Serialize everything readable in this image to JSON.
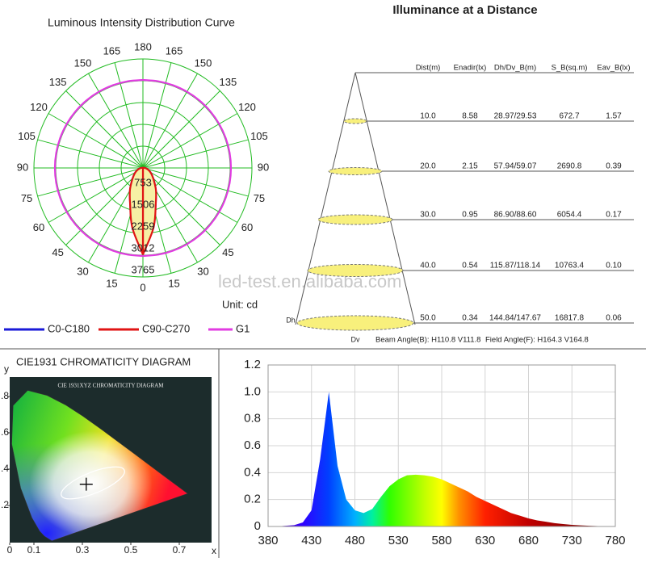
{
  "chart_data": [
    {
      "type": "polar",
      "title": "Luminous Intensity Distribution Curve",
      "angle_ticks": [
        0,
        15,
        30,
        45,
        60,
        75,
        90,
        105,
        120,
        135,
        150,
        165,
        180
      ],
      "rlim": [
        0,
        3765
      ],
      "rticks": [
        753,
        1506,
        2259,
        3012,
        3765
      ],
      "unit_label": "Unit: cd",
      "watermark": "led-test.en.alibaba.com",
      "angles": [
        0,
        10,
        20,
        30,
        40,
        50,
        60,
        70,
        80,
        90,
        100,
        110,
        120,
        130,
        140,
        150,
        160,
        170,
        180
      ],
      "series": [
        {
          "name": "C0-C180",
          "color": "#1a1ad8",
          "values": [
            2960,
            2080,
            1290,
            890,
            600,
            420,
            300,
            200,
            120,
            60,
            30,
            10,
            0,
            0,
            0,
            0,
            0,
            0,
            0
          ]
        },
        {
          "name": "C90-C270",
          "color": "#e01414",
          "fill": "#f6f0a4",
          "values": [
            2990,
            2100,
            1300,
            900,
            600,
            420,
            300,
            200,
            120,
            60,
            30,
            10,
            0,
            0,
            0,
            0,
            0,
            0,
            0
          ]
        },
        {
          "name": "G1",
          "color": "#e23be2",
          "values": [
            3040,
            3040,
            3040,
            3040,
            3040,
            3040,
            3040,
            3040,
            3040,
            3040,
            3040,
            3040,
            3040,
            3040,
            3040,
            3040,
            3040,
            3040,
            3040
          ]
        }
      ]
    },
    {
      "type": "scatter",
      "title": "CIE1931 CHROMATICITY DIAGRAM",
      "inner_title": "CIE 1931XYZ CHROMATICITY DIAGRAM",
      "xlabel": "x",
      "ylabel": "y",
      "xlim": [
        0,
        0.8
      ],
      "ylim": [
        0,
        0.9
      ],
      "xticks": [
        0,
        0.1,
        0.3,
        0.5,
        0.7
      ],
      "yticks": [
        {
          "value": 0.2,
          "label": ".2"
        },
        {
          "value": 0.4,
          "label": ".4"
        },
        {
          "value": 0.6,
          "label": ".6"
        },
        {
          "value": 0.8,
          "label": ".8"
        }
      ],
      "x": [
        0.316
      ],
      "values": [
        0.317
      ]
    },
    {
      "type": "area",
      "xlim": [
        380,
        780
      ],
      "ylim": [
        0,
        1.2
      ],
      "xticks": [
        380,
        430,
        480,
        530,
        580,
        630,
        680,
        730,
        780
      ],
      "yticks": [
        0,
        0.2,
        0.4,
        0.6,
        0.8,
        {
          "value": 1,
          "label": "1.0"
        },
        1.2
      ],
      "grid": true,
      "x": [
        380,
        390,
        400,
        410,
        420,
        430,
        440,
        450,
        460,
        470,
        480,
        490,
        500,
        510,
        520,
        530,
        540,
        550,
        560,
        570,
        580,
        590,
        600,
        610,
        620,
        630,
        640,
        650,
        660,
        670,
        680,
        690,
        700,
        710,
        720,
        730,
        740,
        750,
        760,
        770,
        780
      ],
      "values": [
        0,
        0,
        0.005,
        0.01,
        0.03,
        0.12,
        0.5,
        1.0,
        0.45,
        0.2,
        0.12,
        0.1,
        0.13,
        0.22,
        0.3,
        0.35,
        0.38,
        0.385,
        0.38,
        0.37,
        0.35,
        0.32,
        0.29,
        0.26,
        0.22,
        0.19,
        0.16,
        0.13,
        0.1,
        0.08,
        0.06,
        0.045,
        0.035,
        0.025,
        0.018,
        0.012,
        0.008,
        0.005,
        0.003,
        0.002,
        0.001
      ]
    }
  ],
  "illuminance": {
    "title": "Illuminance at a Distance",
    "columns": [
      "Dist(m)",
      "Enadir(lx)",
      "Dh/Dv_B(m)",
      "S_B(sq.m)",
      "Eav_B(lx)"
    ],
    "rows": [
      [
        "10.0",
        "8.58",
        "28.97/29.53",
        "672.7",
        "1.57"
      ],
      [
        "20.0",
        "2.15",
        "57.94/59.07",
        "2690.8",
        "0.39"
      ],
      [
        "30.0",
        "0.95",
        "86.90/88.60",
        "6054.4",
        "0.17"
      ],
      [
        "40.0",
        "0.54",
        "115.87/118.14",
        "10763.4",
        "0.10"
      ],
      [
        "50.0",
        "0.34",
        "144.84/147.67",
        "16817.8",
        "0.06"
      ]
    ],
    "dh_label": "Dh",
    "dv_label": "Dv",
    "beam_angle": "Beam Angle(B): H110.8 V111.8",
    "field_angle": "Field Angle(F): H164.3 V164.8"
  }
}
